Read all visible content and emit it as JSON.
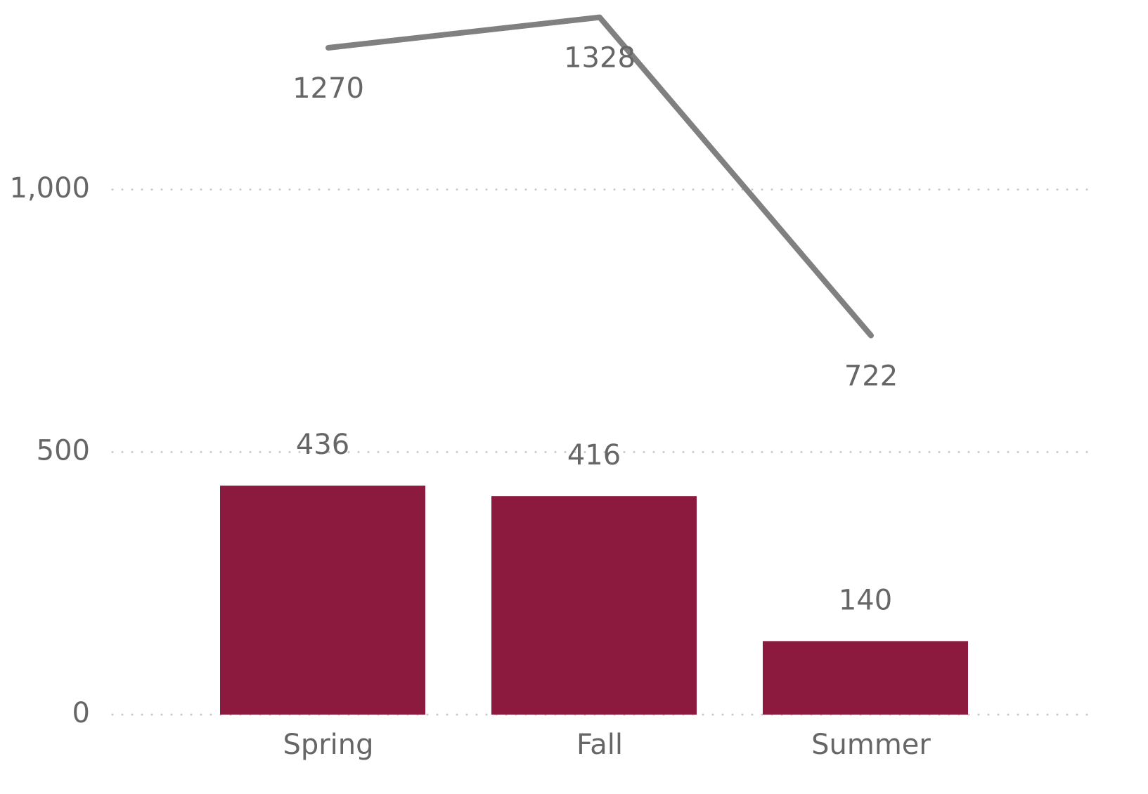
{
  "chart_data": {
    "type": "combo",
    "categories": [
      "Spring",
      "Fall",
      "Summer"
    ],
    "series": [
      {
        "type": "bar",
        "color": "#8c1a3f",
        "values": [
          436,
          416,
          140
        ]
      },
      {
        "type": "line",
        "color": "#808080",
        "values": [
          1270,
          1328,
          722
        ]
      }
    ],
    "ylim": [
      0,
      1361
    ],
    "yticks": [
      0,
      500,
      {
        "value": 1000,
        "label": "1,000"
      }
    ],
    "grid": true
  }
}
